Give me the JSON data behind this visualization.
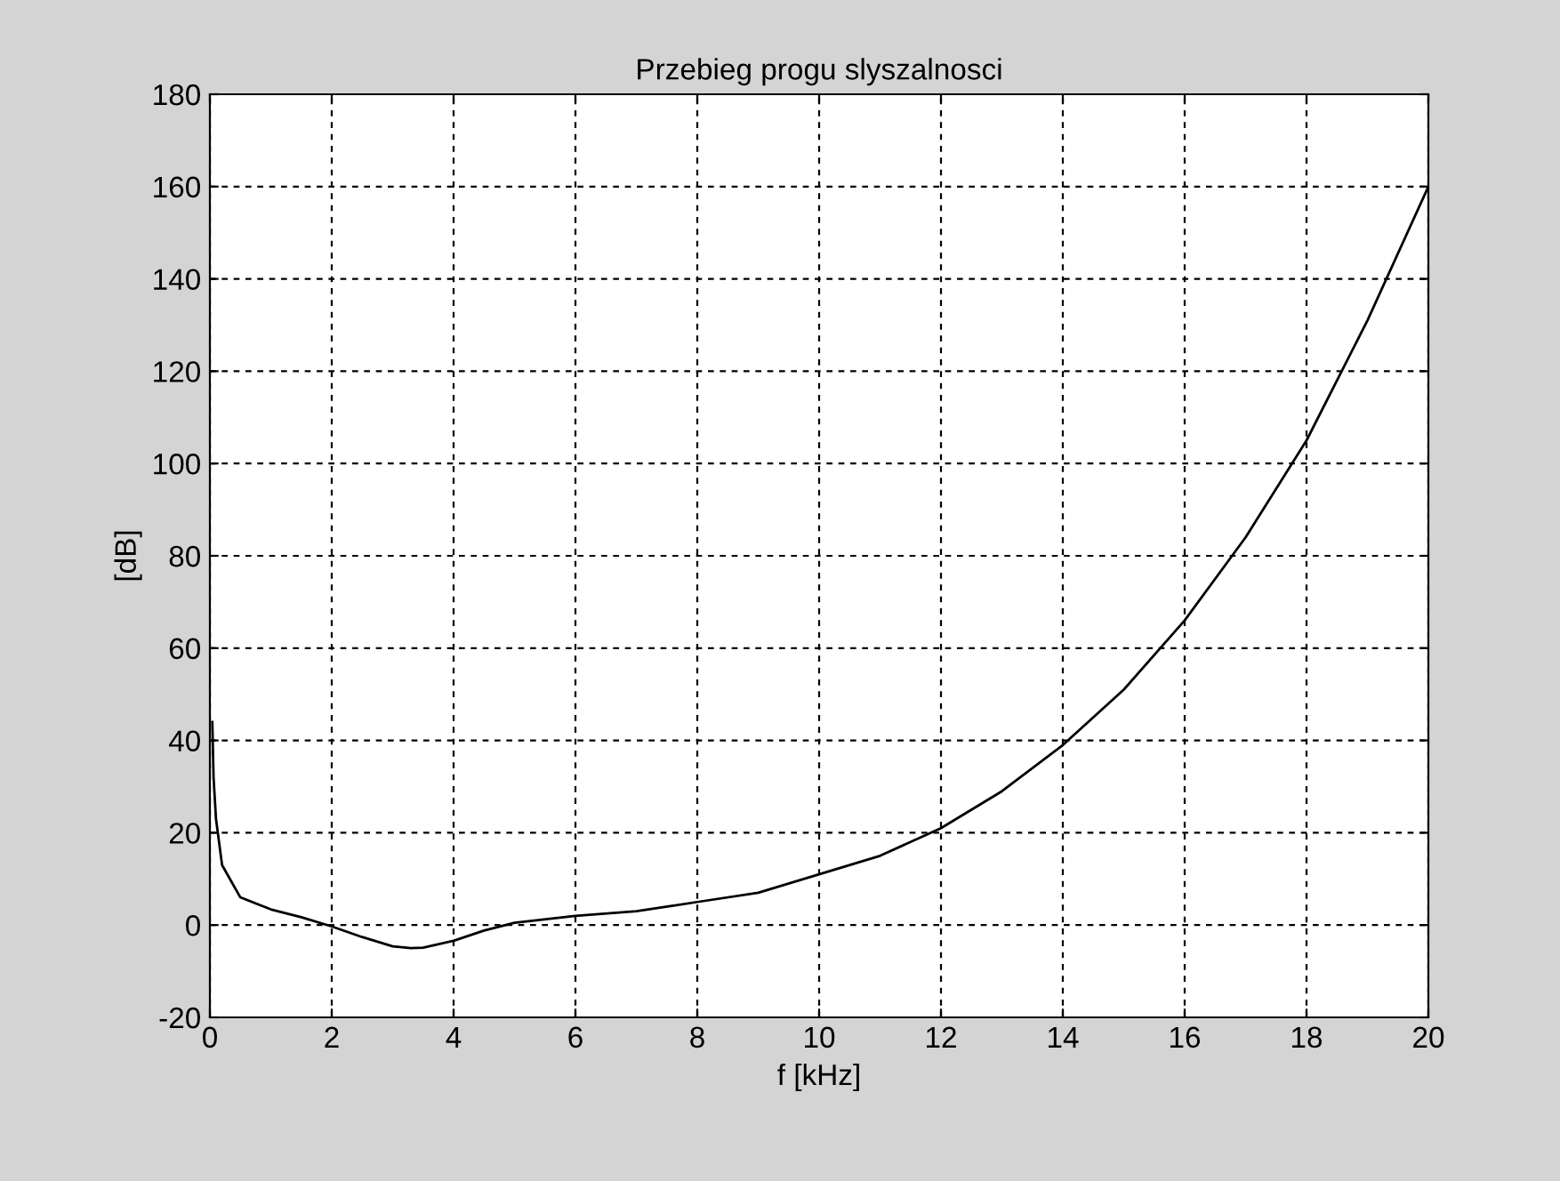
{
  "chart_data": {
    "type": "line",
    "title": "Przebieg progu slyszalnosci",
    "xlabel": "f [kHz]",
    "ylabel": "[dB]",
    "xlim": [
      0,
      20
    ],
    "xticks": [
      0,
      2,
      4,
      6,
      8,
      10,
      12,
      14,
      16,
      18,
      20
    ],
    "ylim": [
      -20,
      180
    ],
    "yticks": [
      -20,
      0,
      20,
      40,
      60,
      80,
      100,
      120,
      140,
      160,
      180
    ],
    "grid": true,
    "line_style": "solid",
    "marker": "none",
    "series": [
      {
        "color": "#000000",
        "x": [
          0.04,
          0.06,
          0.1,
          0.2,
          0.5,
          1,
          1.5,
          2,
          2.5,
          3,
          3.3,
          3.5,
          4,
          4.5,
          5,
          6,
          7,
          8,
          9,
          10,
          11,
          12,
          13,
          14,
          15,
          16,
          17,
          18,
          19,
          20
        ],
        "values": [
          44,
          32,
          23,
          13,
          6,
          3.4,
          1.7,
          -0.3,
          -2.6,
          -4.6,
          -5,
          -4.9,
          -3.4,
          -1.2,
          0.5,
          2,
          3,
          5,
          7,
          11,
          15,
          21,
          29,
          39,
          51,
          66,
          84,
          105,
          131,
          160
        ]
      }
    ]
  }
}
